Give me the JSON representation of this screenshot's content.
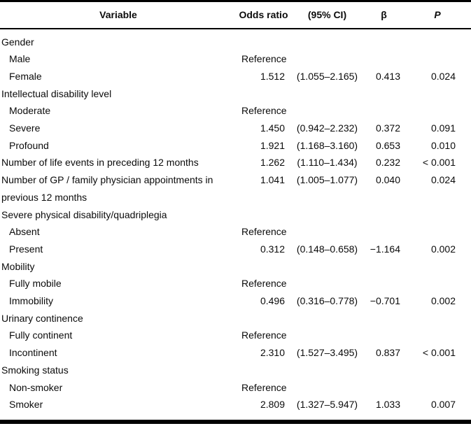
{
  "table": {
    "headers": {
      "variable": "Variable",
      "odds_ratio": "Odds ratio",
      "ci": "(95% CI)",
      "beta": "β",
      "p": "P"
    },
    "reference_label": "Reference",
    "rows": [
      {
        "variable": "Gender",
        "type": "group",
        "or": "",
        "ci": "",
        "beta": "",
        "p": ""
      },
      {
        "variable": "Male",
        "type": "sub",
        "or": "Reference",
        "ci": "",
        "beta": "",
        "p": ""
      },
      {
        "variable": "Female",
        "type": "sub",
        "or": "1.512",
        "ci": "(1.055–2.165)",
        "beta": "0.413",
        "p": "0.024"
      },
      {
        "variable": "Intellectual disability level",
        "type": "group",
        "or": "",
        "ci": "",
        "beta": "",
        "p": ""
      },
      {
        "variable": "Moderate",
        "type": "sub",
        "or": "Reference",
        "ci": "",
        "beta": "",
        "p": ""
      },
      {
        "variable": "Severe",
        "type": "sub",
        "or": "1.450",
        "ci": "(0.942–2.232)",
        "beta": "0.372",
        "p": "0.091"
      },
      {
        "variable": "Profound",
        "type": "sub",
        "or": "1.921",
        "ci": "(1.168–3.160)",
        "beta": "0.653",
        "p": "0.010"
      },
      {
        "variable": "Number of life events in preceding 12 months",
        "type": "group",
        "or": "1.262",
        "ci": "(1.110–1.434)",
        "beta": "0.232",
        "p": "< 0.001"
      },
      {
        "variable": "Number of GP / family physician appointments in\nprevious 12 months",
        "type": "group",
        "or": "1.041",
        "ci": "(1.005–1.077)",
        "beta": "0.040",
        "p": "0.024"
      },
      {
        "variable": "Severe physical disability/quadriplegia",
        "type": "group",
        "or": "",
        "ci": "",
        "beta": "",
        "p": ""
      },
      {
        "variable": "Absent",
        "type": "sub",
        "or": "Reference",
        "ci": "",
        "beta": "",
        "p": ""
      },
      {
        "variable": "Present",
        "type": "sub",
        "or": "0.312",
        "ci": "(0.148–0.658)",
        "beta": "−1.164",
        "p": "0.002"
      },
      {
        "variable": "Mobility",
        "type": "group",
        "or": "",
        "ci": "",
        "beta": "",
        "p": ""
      },
      {
        "variable": "Fully mobile",
        "type": "sub",
        "or": "Reference",
        "ci": "",
        "beta": "",
        "p": ""
      },
      {
        "variable": "Immobility",
        "type": "sub",
        "or": "0.496",
        "ci": "(0.316–0.778)",
        "beta": "−0.701",
        "p": "0.002"
      },
      {
        "variable": "Urinary continence",
        "type": "group",
        "or": "",
        "ci": "",
        "beta": "",
        "p": ""
      },
      {
        "variable": "Fully continent",
        "type": "sub",
        "or": "Reference",
        "ci": "",
        "beta": "",
        "p": ""
      },
      {
        "variable": "Incontinent",
        "type": "sub",
        "or": "2.310",
        "ci": "(1.527–3.495)",
        "beta": "0.837",
        "p": "< 0.001"
      },
      {
        "variable": "Smoking status",
        "type": "group",
        "or": "",
        "ci": "",
        "beta": "",
        "p": ""
      },
      {
        "variable": "Non-smoker",
        "type": "sub",
        "or": "Reference",
        "ci": "",
        "beta": "",
        "p": ""
      },
      {
        "variable": "Smoker",
        "type": "sub",
        "or": "2.809",
        "ci": "(1.327–5.947)",
        "beta": "1.033",
        "p": "0.007"
      }
    ]
  },
  "colors": {
    "text": "#0b0b0b",
    "background": "#ffffff",
    "rule": "#000000"
  }
}
